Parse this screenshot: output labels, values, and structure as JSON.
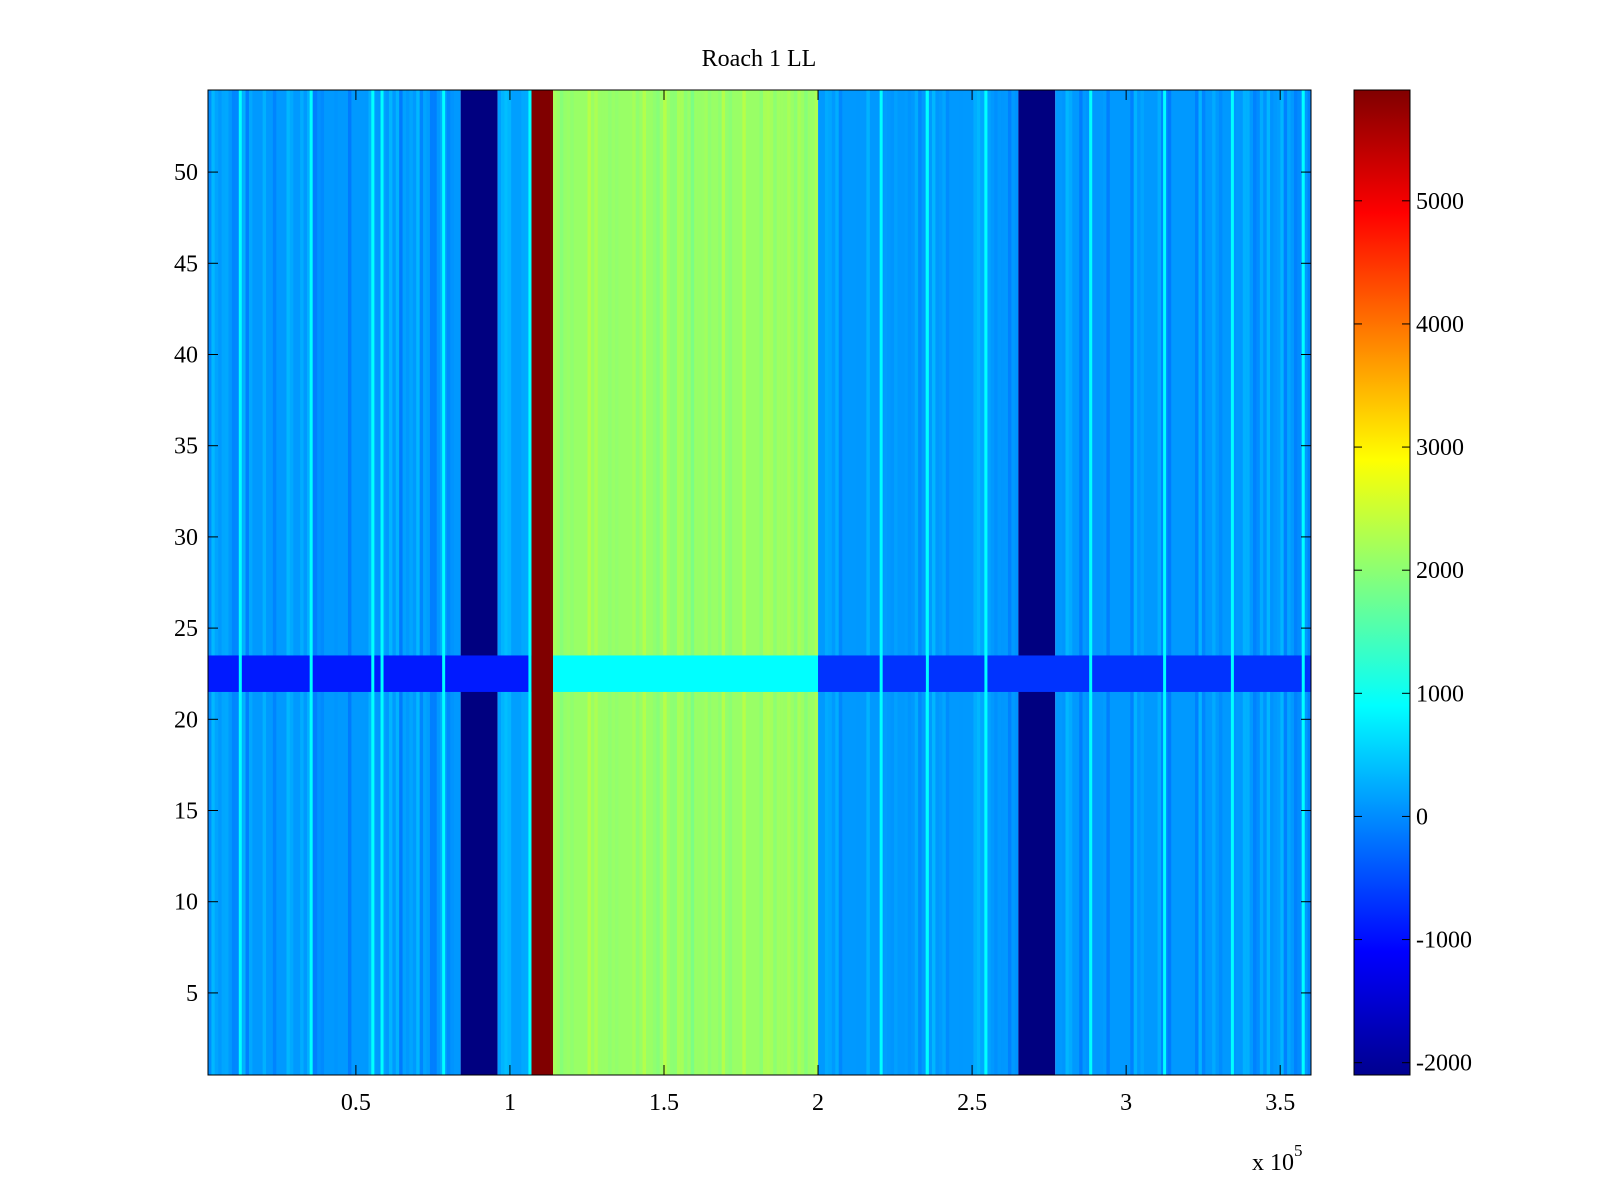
{
  "chart_data": {
    "type": "heatmap",
    "title": "Roach 1 LL",
    "xlabel": "",
    "ylabel": "",
    "x_exponent_label": "x 10",
    "x_exponent_power": "5",
    "xlim": [
      0.02,
      3.6
    ],
    "ylim": [
      0.5,
      54.5
    ],
    "x_tick_values": [
      0.5,
      1,
      1.5,
      2,
      2.5,
      3,
      3.5
    ],
    "x_tick_labels": [
      "0.5",
      "1",
      "1.5",
      "2",
      "2.5",
      "3",
      "3.5"
    ],
    "y_tick_values": [
      5,
      10,
      15,
      20,
      25,
      30,
      35,
      40,
      45,
      50
    ],
    "y_tick_labels": [
      "5",
      "10",
      "15",
      "20",
      "25",
      "30",
      "35",
      "40",
      "45",
      "50"
    ],
    "colorbar": {
      "colormap": "jet",
      "clim": [
        -2100,
        5900
      ],
      "tick_values": [
        -2000,
        -1000,
        0,
        1000,
        2000,
        3000,
        4000,
        5000
      ],
      "tick_labels": [
        "-2000",
        "-1000",
        "0",
        "1000",
        "2000",
        "3000",
        "4000",
        "5000"
      ]
    },
    "bands": [
      {
        "x0": 0.02,
        "x1": 0.84,
        "value": 100
      },
      {
        "x0": 0.84,
        "x1": 0.96,
        "value": -2100
      },
      {
        "x0": 0.96,
        "x1": 1.07,
        "value": 150
      },
      {
        "x0": 1.07,
        "x1": 1.14,
        "value": 5900
      },
      {
        "x0": 1.14,
        "x1": 2.0,
        "value": 2100
      },
      {
        "x0": 2.0,
        "x1": 2.65,
        "value": 100
      },
      {
        "x0": 2.65,
        "x1": 2.77,
        "value": -2100
      },
      {
        "x0": 2.77,
        "x1": 3.6,
        "value": 100
      }
    ],
    "row_bands": [
      {
        "y0": 21.5,
        "y1": 23.5,
        "value": -900,
        "x0": 0.02,
        "x1": 1.07
      },
      {
        "y0": 21.5,
        "y1": 23.5,
        "value": 900,
        "x0": 1.14,
        "x1": 2.0
      },
      {
        "y0": 21.5,
        "y1": 23.5,
        "value": -700,
        "x0": 2.0,
        "x1": 3.6
      }
    ],
    "streak_columns_x": [
      0.12,
      0.35,
      0.55,
      0.58,
      0.78,
      1.06,
      2.2,
      2.35,
      2.54,
      2.88,
      3.12,
      3.34,
      3.57
    ],
    "grid": false,
    "legend": "none"
  }
}
